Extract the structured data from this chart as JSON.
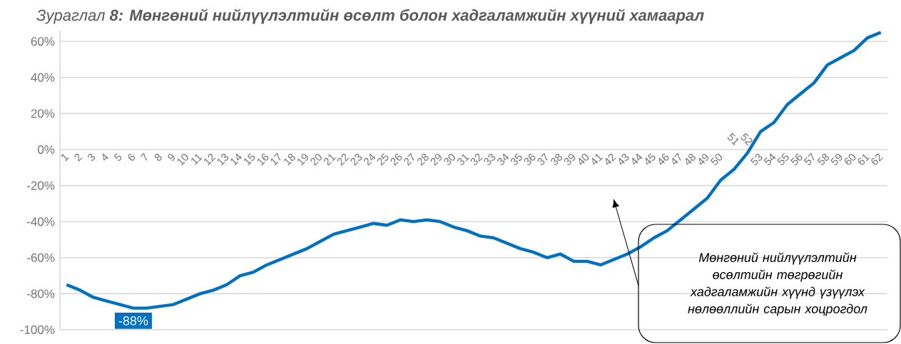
{
  "chart_data": {
    "type": "line",
    "title": "Зураглал **8: Мөнгөний нийлүүлэлтийн өсөлт болон хадгаламжийн хүүний хамаарал**",
    "categories": [
      "1",
      "2",
      "3",
      "4",
      "5",
      "6",
      "7",
      "8",
      "9",
      "10",
      "11",
      "12",
      "13",
      "14",
      "15",
      "16",
      "17",
      "18",
      "19",
      "20",
      "21",
      "22",
      "23",
      "24",
      "25",
      "26",
      "27",
      "28",
      "29",
      "30",
      "31",
      "32",
      "33",
      "34",
      "35",
      "36",
      "37",
      "38",
      "39",
      "40",
      "41",
      "42",
      "43",
      "44",
      "45",
      "46",
      "47",
      "48",
      "49",
      "50",
      "51",
      "52",
      "53",
      "54",
      "55",
      "56",
      "57",
      "58",
      "59",
      "60",
      "61",
      "62"
    ],
    "series": [
      {
        "color": "#0070c0",
        "values": [
          -75,
          -78,
          -82,
          -84,
          -86,
          -88,
          -88,
          -87,
          -86,
          -83,
          -80,
          -78,
          -75,
          -70,
          -68,
          -64,
          -61,
          -58,
          -55,
          -51,
          -47,
          -45,
          -43,
          -41,
          -42,
          -39,
          -40,
          -39,
          -40,
          -43,
          -45,
          -48,
          -49,
          -52,
          -55,
          -57,
          -60,
          -58,
          -62,
          -62,
          -64,
          -61,
          -58,
          -54,
          -49,
          -45,
          -39,
          -33,
          -27,
          -17,
          -11,
          -2,
          10,
          15,
          25,
          31,
          37,
          47,
          51,
          55,
          62,
          65
        ],
        "value_labels": [
          null,
          null,
          null,
          null,
          null,
          "-88%",
          null,
          null,
          null,
          null,
          null,
          null,
          null,
          null,
          null,
          null,
          null,
          null,
          null,
          null,
          null,
          null,
          null,
          null,
          null,
          null,
          null,
          null,
          null,
          null,
          null,
          null,
          null,
          null,
          null,
          null,
          null,
          null,
          null,
          null,
          null,
          null,
          null,
          null,
          null,
          null,
          null,
          null,
          null,
          null,
          null,
          null,
          null,
          null,
          null,
          null,
          null,
          null,
          null,
          null,
          null,
          null
        ]
      }
    ],
    "ylim": [
      -100,
      66
    ],
    "yticks": [
      {
        "value": -100,
        "label": "-100%"
      },
      {
        "value": -80,
        "label": "-80%"
      },
      {
        "value": -60,
        "label": "-60%"
      },
      {
        "value": -40,
        "label": "-40%"
      },
      {
        "value": -20,
        "label": "-20%"
      },
      {
        "value": 0,
        "label": "0%"
      },
      {
        "value": 20,
        "label": "20%"
      },
      {
        "value": 40,
        "label": "40%"
      },
      {
        "value": 60,
        "label": "60%"
      }
    ],
    "grid": "y",
    "marker": "none",
    "line_style": "solid",
    "annotations": [
      "Мөнгөний нийлүүлэлтийн өсөлтийн төгрөгийн хадгаламжийн хүүнд үзүүлэх нөлөөллийн сарын хоцрогдол"
    ]
  }
}
